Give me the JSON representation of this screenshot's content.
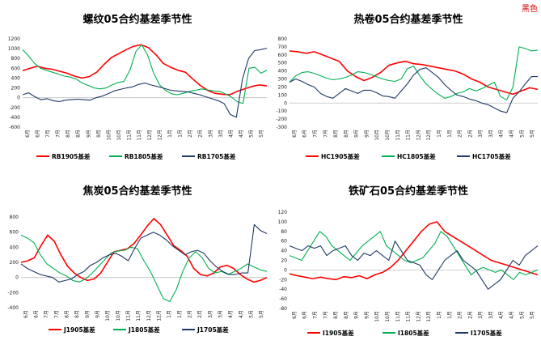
{
  "corner_label": "黑色",
  "colors": {
    "y2019": "#ff0000",
    "y2018": "#00b050",
    "y2017": "#1f3864"
  },
  "chart_data": [
    {
      "type": "line",
      "title": "螺纹05合约基差季节性",
      "ylim": [
        -600,
        1200
      ],
      "yticks": [
        1200,
        1000,
        800,
        600,
        400,
        200,
        0,
        -200,
        -400,
        -600
      ],
      "xticks": [
        "6月",
        "6月",
        "7月",
        "7月",
        "8月",
        "8月",
        "9月",
        "9月",
        "10月",
        "10月",
        "11月",
        "11月",
        "12月",
        "12月",
        "1月",
        "1月",
        "2月",
        "2月",
        "3月",
        "3月",
        "4月",
        "4月",
        "5月",
        "5月"
      ],
      "grid": false,
      "legend_position": "bottom",
      "series": [
        {
          "name": "RB1905基差",
          "color": "#ff0000",
          "values": [
            550,
            600,
            640,
            600,
            580,
            540,
            500,
            440,
            400,
            430,
            520,
            680,
            820,
            900,
            980,
            1050,
            1080,
            1020,
            880,
            700,
            620,
            560,
            520,
            380,
            250,
            150,
            90,
            70,
            60,
            130,
            180,
            230,
            260,
            240
          ]
        },
        {
          "name": "RB1805基差",
          "color": "#00b050",
          "values": [
            980,
            850,
            700,
            600,
            560,
            520,
            480,
            440,
            420,
            380,
            300,
            250,
            200,
            180,
            200,
            260,
            310,
            330,
            560,
            940,
            1080,
            860,
            500,
            260,
            150,
            80,
            60,
            90,
            130,
            150,
            180,
            160,
            140,
            130,
            80,
            20,
            -80,
            -120,
            600,
            620,
            500,
            560
          ]
        },
        {
          "name": "RB1705基差",
          "color": "#1f3864",
          "values": [
            60,
            100,
            20,
            -40,
            -20,
            -60,
            -80,
            -50,
            -40,
            -30,
            -40,
            -50,
            0,
            30,
            80,
            140,
            170,
            200,
            220,
            270,
            300,
            260,
            230,
            200,
            160,
            140,
            130,
            120,
            90,
            60,
            20,
            -20,
            -60,
            -120,
            -340,
            -400,
            380,
            800,
            960,
            980,
            1010
          ]
        }
      ]
    },
    {
      "type": "line",
      "title": "热卷05合约基差季节性",
      "ylim": [
        -300,
        800
      ],
      "yticks": [
        800,
        700,
        600,
        500,
        400,
        300,
        200,
        100,
        0,
        -100,
        -200,
        -300
      ],
      "xticks": [
        "6月",
        "6月",
        "7月",
        "7月",
        "8月",
        "8月",
        "9月",
        "9月",
        "10月",
        "10月",
        "11月",
        "11月",
        "12月",
        "12月",
        "1月",
        "1月",
        "2月",
        "2月",
        "3月",
        "3月",
        "4月",
        "4月",
        "5月",
        "5月"
      ],
      "grid": false,
      "legend_position": "bottom",
      "series": [
        {
          "name": "HC1905基差",
          "color": "#ff0000",
          "values": [
            650,
            640,
            620,
            640,
            600,
            560,
            520,
            400,
            330,
            280,
            320,
            380,
            470,
            500,
            520,
            490,
            480,
            460,
            440,
            420,
            400,
            360,
            300,
            260,
            200,
            170,
            140,
            110,
            150,
            190,
            170
          ]
        },
        {
          "name": "HC1805基差",
          "color": "#00b050",
          "values": [
            260,
            340,
            380,
            390,
            370,
            340,
            310,
            290,
            300,
            320,
            350,
            390,
            380,
            360,
            330,
            300,
            280,
            270,
            300,
            430,
            460,
            340,
            240,
            170,
            110,
            60,
            80,
            120,
            140,
            180,
            150,
            180,
            220,
            260,
            80,
            40,
            200,
            700,
            680,
            650,
            660
          ]
        },
        {
          "name": "HC1705基差",
          "color": "#1f3864",
          "values": [
            260,
            300,
            270,
            230,
            200,
            120,
            80,
            60,
            120,
            180,
            150,
            120,
            160,
            160,
            130,
            90,
            80,
            60,
            150,
            240,
            350,
            420,
            440,
            380,
            320,
            230,
            160,
            100,
            80,
            50,
            30,
            0,
            -20,
            -60,
            -100,
            -120,
            60,
            140,
            240,
            330,
            330
          ]
        }
      ]
    },
    {
      "type": "line",
      "title": "焦炭05合约基差季节性",
      "ylim": [
        -400,
        800
      ],
      "yticks": [
        800,
        600,
        400,
        200,
        0,
        -200,
        -400
      ],
      "xticks": [
        "6月",
        "6月",
        "7月",
        "7月",
        "8月",
        "8月",
        "9月",
        "9月",
        "10月",
        "10月",
        "11月",
        "11月",
        "12月",
        "12月",
        "1月",
        "1月",
        "2月",
        "2月",
        "3月",
        "3月",
        "4月",
        "4月",
        "5月",
        "5月"
      ],
      "grid": false,
      "legend_position": "bottom",
      "series": [
        {
          "name": "J1905基差",
          "color": "#ff0000",
          "values": [
            200,
            220,
            260,
            420,
            560,
            480,
            300,
            150,
            60,
            0,
            -40,
            -20,
            60,
            200,
            340,
            360,
            380,
            450,
            560,
            680,
            780,
            700,
            560,
            420,
            360,
            280,
            120,
            40,
            20,
            60,
            140,
            160,
            120,
            40,
            -20,
            -60,
            -40,
            0
          ]
        },
        {
          "name": "J1805基差",
          "color": "#00b050",
          "values": [
            560,
            520,
            460,
            300,
            180,
            120,
            60,
            20,
            -40,
            -60,
            -20,
            60,
            150,
            240,
            330,
            350,
            360,
            400,
            380,
            220,
            80,
            -100,
            -280,
            -320,
            -160,
            80,
            260,
            340,
            260,
            120,
            60,
            80,
            40,
            80,
            120,
            180,
            140,
            100,
            80
          ]
        },
        {
          "name": "J1705基差",
          "color": "#1f3864",
          "values": [
            180,
            120,
            80,
            40,
            20,
            0,
            -60,
            -40,
            -20,
            40,
            80,
            160,
            200,
            260,
            300,
            320,
            280,
            220,
            380,
            520,
            560,
            600,
            560,
            500,
            420,
            360,
            300,
            340,
            360,
            320,
            220,
            140,
            80,
            40,
            40,
            60,
            60,
            700,
            620,
            580
          ]
        }
      ]
    },
    {
      "type": "line",
      "title": "铁矿石05合约基差季节性",
      "ylim": [
        -80,
        120
      ],
      "yticks": [
        120,
        100,
        80,
        60,
        40,
        20,
        0,
        -20,
        -40,
        -60,
        -80
      ],
      "xticks": [
        "6月",
        "6月",
        "7月",
        "7月",
        "8月",
        "8月",
        "9月",
        "9月",
        "10月",
        "10月",
        "11月",
        "11月",
        "12月",
        "12月",
        "1月",
        "1月",
        "2月",
        "2月",
        "3月",
        "3月",
        "4月",
        "4月",
        "5月",
        "5月"
      ],
      "grid": false,
      "legend_position": "bottom",
      "series": [
        {
          "name": "I1905基差",
          "color": "#ff0000",
          "values": [
            -8,
            -12,
            -15,
            -18,
            -15,
            -18,
            -20,
            -14,
            -16,
            -12,
            -18,
            -10,
            -5,
            5,
            20,
            40,
            60,
            80,
            95,
            100,
            80,
            70,
            60,
            50,
            40,
            30,
            20,
            15,
            10,
            5,
            0,
            -5,
            -10
          ]
        },
        {
          "name": "I1805基差",
          "color": "#00b050",
          "values": [
            30,
            25,
            20,
            40,
            60,
            80,
            70,
            50,
            40,
            30,
            20,
            35,
            50,
            60,
            70,
            80,
            50,
            40,
            30,
            20,
            15,
            20,
            25,
            40,
            55,
            80,
            70,
            50,
            30,
            10,
            -10,
            0,
            5,
            0,
            -5,
            0,
            -10,
            -20,
            -5,
            -10,
            -5,
            0
          ]
        },
        {
          "name": "I1705基差",
          "color": "#1f3864",
          "values": [
            50,
            45,
            40,
            50,
            45,
            50,
            30,
            40,
            45,
            50,
            30,
            20,
            35,
            30,
            40,
            30,
            20,
            60,
            40,
            20,
            15,
            10,
            -10,
            -20,
            0,
            20,
            30,
            40,
            20,
            10,
            0,
            -20,
            -40,
            -30,
            -20,
            0,
            20,
            10,
            30,
            40,
            50
          ]
        }
      ]
    }
  ]
}
